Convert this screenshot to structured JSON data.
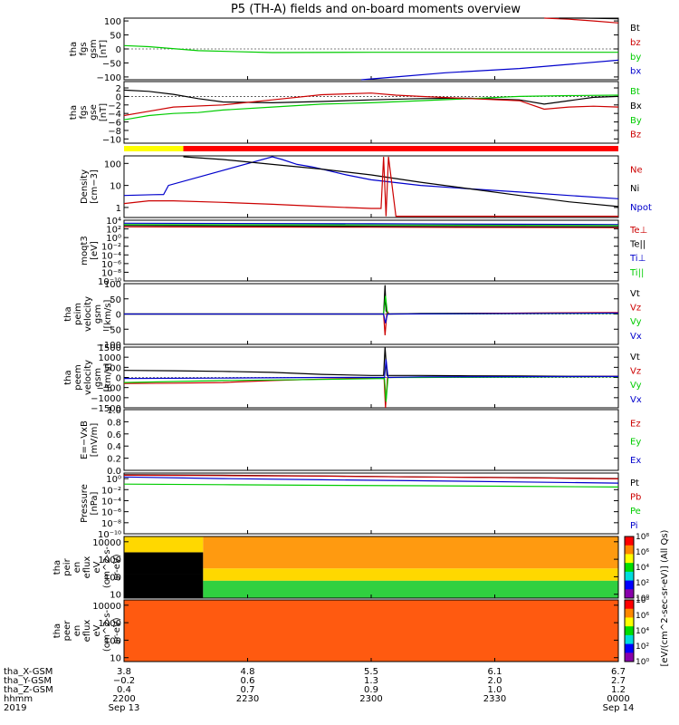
{
  "title": "P5 (TH-A) fields and on-board moments overview",
  "chart_data": [
    {
      "id": "fgs_gsm",
      "type": "line",
      "ylabel": [
        "tha",
        "fgs",
        "gsm",
        "[nT]"
      ],
      "ylim": [
        -110,
        110
      ],
      "yticks": [
        -100,
        -50,
        0,
        50,
        100
      ],
      "ytick_labels": [
        "−100",
        "−50",
        "0",
        "50",
        "100"
      ],
      "legend": [
        {
          "name": "Bt",
          "color": "#000000"
        },
        {
          "name": "bz",
          "color": "#cc0000"
        },
        {
          "name": "by",
          "color": "#00cc00"
        },
        {
          "name": "bx",
          "color": "#0000cc"
        }
      ],
      "series": [
        {
          "color": "#00cc00",
          "x": [
            0,
            0.05,
            0.15,
            0.3,
            0.5,
            0.7,
            0.9,
            1
          ],
          "y": [
            12,
            8,
            -6,
            -13,
            -12,
            -12,
            -12,
            -12
          ]
        },
        {
          "color": "#0000cc",
          "x": [
            0.48,
            0.55,
            0.65,
            0.8,
            0.9,
            1
          ],
          "y": [
            -110,
            -100,
            -85,
            -70,
            -55,
            -40
          ]
        },
        {
          "color": "#cc0000",
          "x": [
            0.85,
            0.9,
            0.95,
            1
          ],
          "y": [
            110,
            106,
            100,
            93
          ]
        },
        {
          "color": "#000000",
          "x": [
            0.88,
            0.93,
            1
          ],
          "y": [
            110,
            110,
            108
          ]
        }
      ]
    },
    {
      "id": "fgs_gse",
      "type": "line",
      "ylabel": [
        "tha",
        "fgs",
        "gse",
        "[nT]"
      ],
      "ylim": [
        -11,
        3.5
      ],
      "yticks": [
        -10,
        -8,
        -6,
        -4,
        -2,
        0,
        2
      ],
      "ytick_labels": [
        "−10",
        "−8",
        "−6",
        "−4",
        "−2",
        "0",
        "2"
      ],
      "legend": [
        {
          "name": "Bt",
          "color": "#00cc00"
        },
        {
          "name": "Bx",
          "color": "#000000"
        },
        {
          "name": "By",
          "color": "#00cc00"
        },
        {
          "name": "Bz",
          "color": "#cc0000"
        }
      ],
      "series": [
        {
          "color": "#000000",
          "x": [
            0,
            0.05,
            0.1,
            0.15,
            0.2,
            0.3,
            0.4,
            0.5,
            0.6,
            0.7,
            0.8,
            0.85,
            0.9,
            0.95,
            1
          ],
          "y": [
            1.5,
            1.2,
            0.5,
            -0.5,
            -1.3,
            -1.5,
            -1.2,
            -0.8,
            -0.5,
            -0.4,
            -0.8,
            -1.8,
            -1.0,
            -0.2,
            0.0
          ]
        },
        {
          "color": "#00cc00",
          "x": [
            0,
            0.05,
            0.1,
            0.15,
            0.2,
            0.3,
            0.4,
            0.5,
            0.6,
            0.7,
            0.8,
            0.9,
            1
          ],
          "y": [
            -5.5,
            -4.5,
            -4.0,
            -3.8,
            -3.2,
            -2.5,
            -1.8,
            -1.5,
            -1.0,
            -0.5,
            0.0,
            0.2,
            0.3
          ]
        },
        {
          "color": "#cc0000",
          "x": [
            0,
            0.05,
            0.1,
            0.2,
            0.3,
            0.4,
            0.5,
            0.55,
            0.6,
            0.7,
            0.8,
            0.85,
            0.9,
            0.95,
            1
          ],
          "y": [
            -4.5,
            -3.5,
            -2.5,
            -2.0,
            -0.8,
            0.4,
            0.8,
            0.3,
            0.0,
            -0.5,
            -1.0,
            -3.0,
            -2.5,
            -2.3,
            -2.5
          ]
        }
      ]
    },
    {
      "id": "density",
      "type": "line",
      "ylabel": [
        "Density",
        "[cm−3]"
      ],
      "yscale": "log",
      "ylim": [
        0.35,
        220
      ],
      "yticks": [
        1,
        10,
        100
      ],
      "ytick_labels": [
        "1",
        "10",
        "100"
      ],
      "legend": [
        {
          "name": "Ne",
          "color": "#cc0000"
        },
        {
          "name": "Ni",
          "color": "#000000"
        },
        {
          "name": "Npot",
          "color": "#0000cc"
        }
      ],
      "series": [
        {
          "color": "#0000cc",
          "x": [
            0,
            0.06,
            0.08,
            0.09,
            0.3,
            0.32,
            0.35,
            0.38,
            0.4,
            0.45,
            0.5,
            0.6,
            0.7,
            0.8,
            0.9,
            1
          ],
          "y": [
            3.5,
            3.8,
            3.9,
            10,
            200,
            150,
            90,
            70,
            55,
            30,
            18,
            10,
            7,
            5,
            3.5,
            2.5
          ]
        },
        {
          "color": "#000000",
          "x": [
            0.12,
            0.2,
            0.3,
            0.4,
            0.5,
            0.6,
            0.7,
            0.8,
            0.9,
            1
          ],
          "y": [
            200,
            150,
            90,
            55,
            30,
            14,
            7,
            3.5,
            1.8,
            1.1
          ]
        },
        {
          "color": "#cc0000",
          "x": [
            0,
            0.05,
            0.1,
            0.2,
            0.3,
            0.4,
            0.5,
            0.52,
            0.525,
            0.53,
            0.535,
            0.55,
            0.6,
            0.7,
            0.8,
            0.9,
            1
          ],
          "y": [
            1.5,
            2.0,
            2.0,
            1.7,
            1.4,
            1.1,
            0.9,
            0.9,
            200,
            0.4,
            200,
            0.4,
            0.4,
            0.4,
            0.4,
            0.4,
            0.4
          ]
        }
      ]
    },
    {
      "id": "temperature",
      "type": "line",
      "ylabel": [
        "moqt3",
        "[eV]"
      ],
      "yscale": "log",
      "ylim": [
        1e-10,
        10000
      ],
      "yticks": [
        1e-10,
        1e-08,
        1e-06,
        0.0001,
        0.01,
        1,
        100,
        10000
      ],
      "ytick_labels": [
        "10⁻¹⁰",
        "10⁻⁸",
        "10⁻⁶",
        "10⁻⁴",
        "10⁻²",
        "10⁰",
        "10²",
        "10⁴"
      ],
      "legend": [
        {
          "name": "Te⊥",
          "color": "#cc0000"
        },
        {
          "name": "Te||",
          "color": "#000000"
        },
        {
          "name": "Ti⊥",
          "color": "#0000cc"
        },
        {
          "name": "Ti||",
          "color": "#00cc00"
        }
      ],
      "series": [
        {
          "color": "#cc0000",
          "x": [
            0,
            0.5,
            1
          ],
          "y": [
            300,
            250,
            200
          ]
        },
        {
          "color": "#000000",
          "x": [
            0,
            0.5,
            1
          ],
          "y": [
            600,
            400,
            300
          ]
        },
        {
          "color": "#0000cc",
          "x": [
            0,
            0.5,
            1
          ],
          "y": [
            2000,
            1500,
            1000
          ]
        },
        {
          "color": "#00cc00",
          "x": [
            0,
            0.5,
            1
          ],
          "y": [
            1000,
            800,
            600
          ]
        }
      ]
    },
    {
      "id": "peim_velocity",
      "type": "line",
      "ylabel": [
        "tha",
        "peim",
        "velocity",
        "gsm",
        "[km/s]"
      ],
      "ylim": [
        -100,
        100
      ],
      "yticks": [
        -100,
        -50,
        0,
        50,
        100
      ],
      "ytick_labels": [
        "−100",
        "−50",
        "0",
        "50",
        "100"
      ],
      "legend": [
        {
          "name": "Vt",
          "color": "#000000"
        },
        {
          "name": "Vz",
          "color": "#cc0000"
        },
        {
          "name": "Vy",
          "color": "#00cc00"
        },
        {
          "name": "Vx",
          "color": "#0000cc"
        }
      ],
      "series": [
        {
          "color": "#000000",
          "x": [
            0,
            0.5,
            0.525,
            0.528,
            0.53,
            0.535,
            0.6,
            1
          ],
          "y": [
            0,
            0,
            0,
            95,
            10,
            0,
            2,
            4
          ]
        },
        {
          "color": "#cc0000",
          "x": [
            0,
            0.525,
            0.528,
            0.532,
            0.536,
            1
          ],
          "y": [
            0,
            0,
            -70,
            10,
            0,
            5
          ]
        },
        {
          "color": "#00cc00",
          "x": [
            0,
            0.525,
            0.529,
            0.533,
            1
          ],
          "y": [
            0,
            0,
            60,
            0,
            2
          ]
        },
        {
          "color": "#0000cc",
          "x": [
            0,
            0.525,
            0.529,
            0.533,
            1
          ],
          "y": [
            0,
            0,
            -30,
            0,
            3
          ]
        }
      ]
    },
    {
      "id": "peem_velocity",
      "type": "line",
      "ylabel": [
        "tha",
        "peem",
        "velocity",
        "gsm",
        "[km/s]"
      ],
      "ylim": [
        -1500,
        1500
      ],
      "yticks": [
        -1500,
        -1000,
        -500,
        0,
        500,
        1000,
        1500
      ],
      "ytick_labels": [
        "−1500",
        "−1000",
        "−500",
        "0",
        "500",
        "1000",
        "1500"
      ],
      "legend": [
        {
          "name": "Vt",
          "color": "#000000"
        },
        {
          "name": "Vz",
          "color": "#cc0000"
        },
        {
          "name": "Vy",
          "color": "#00cc00"
        },
        {
          "name": "Vx",
          "color": "#0000cc"
        }
      ],
      "series": [
        {
          "color": "#000000",
          "x": [
            0,
            0.1,
            0.2,
            0.3,
            0.4,
            0.5,
            0.525,
            0.528,
            0.532,
            0.6,
            0.7,
            0.8,
            0.9,
            1
          ],
          "y": [
            350,
            330,
            300,
            250,
            150,
            100,
            100,
            1500,
            100,
            100,
            80,
            70,
            60,
            60
          ]
        },
        {
          "color": "#cc0000",
          "x": [
            0,
            0.1,
            0.2,
            0.3,
            0.4,
            0.5,
            0.526,
            0.529,
            0.533,
            0.6,
            0.8,
            1
          ],
          "y": [
            -300,
            -280,
            -250,
            -150,
            -80,
            -30,
            0,
            -1500,
            0,
            20,
            30,
            50
          ]
        },
        {
          "color": "#00cc00",
          "x": [
            0,
            0.2,
            0.4,
            0.527,
            0.53,
            0.534,
            0.6,
            0.8,
            1
          ],
          "y": [
            -250,
            -150,
            -100,
            -50,
            -1200,
            0,
            0,
            20,
            40
          ]
        },
        {
          "color": "#0000cc",
          "x": [
            0,
            0.2,
            0.4,
            0.527,
            0.53,
            0.534,
            0.6,
            0.8,
            1
          ],
          "y": [
            -50,
            -30,
            0,
            0,
            900,
            0,
            30,
            40,
            50
          ]
        }
      ]
    },
    {
      "id": "efield",
      "type": "line",
      "ylabel": [
        "E=−VxB",
        "[mV/m]"
      ],
      "ylim": [
        0,
        1
      ],
      "yticks": [
        0,
        0.2,
        0.4,
        0.6,
        0.8,
        1.0
      ],
      "ytick_labels": [
        "0.0",
        "0.2",
        "0.4",
        "0.6",
        "0.8",
        "1.0"
      ],
      "legend": [
        {
          "name": "Ez",
          "color": "#cc0000"
        },
        {
          "name": "Ey",
          "color": "#00cc00"
        },
        {
          "name": "Ex",
          "color": "#0000cc"
        }
      ],
      "series": []
    },
    {
      "id": "pressure",
      "type": "line",
      "ylabel": [
        "Pressure",
        "[nPa]"
      ],
      "yscale": "log",
      "ylim": [
        1e-10,
        10
      ],
      "yticks": [
        1e-10,
        1e-08,
        1e-06,
        0.0001,
        0.01,
        1
      ],
      "ytick_labels": [
        "10⁻¹⁰",
        "10⁻⁸",
        "10⁻⁶",
        "10⁻⁴",
        "10⁻²",
        "10⁰"
      ],
      "legend": [
        {
          "name": "Pt",
          "color": "#000000"
        },
        {
          "name": "Pb",
          "color": "#cc0000"
        },
        {
          "name": "Pe",
          "color": "#00cc00"
        },
        {
          "name": "Pi",
          "color": "#0000cc"
        }
      ],
      "series": [
        {
          "color": "#000000",
          "x": [
            0,
            0.2,
            0.4,
            0.6,
            0.8,
            1
          ],
          "y": [
            5,
            4,
            3,
            2,
            1.5,
            1
          ]
        },
        {
          "color": "#cc0000",
          "x": [
            0,
            0.2,
            0.4,
            0.6,
            0.8,
            1
          ],
          "y": [
            4,
            3.5,
            2.8,
            2,
            1.4,
            0.9
          ]
        },
        {
          "color": "#00cc00",
          "x": [
            0,
            0.2,
            0.4,
            0.6,
            0.8,
            1
          ],
          "y": [
            0.1,
            0.08,
            0.06,
            0.05,
            0.04,
            0.03
          ]
        },
        {
          "color": "#0000cc",
          "x": [
            0,
            0.2,
            0.4,
            0.6,
            0.8,
            1
          ],
          "y": [
            2,
            1,
            0.6,
            0.4,
            0.25,
            0.15
          ]
        }
      ]
    },
    {
      "id": "peir_spectrogram",
      "type": "heatmap",
      "ylabel": [
        "tha",
        "peir",
        "en",
        "eflux",
        "eV",
        "(cm^2-s-",
        "sr-eV)"
      ],
      "yscale": "log",
      "ylim": [
        6,
        20000
      ],
      "yticks": [
        10,
        100,
        1000,
        10000
      ],
      "ytick_labels": [
        "10",
        "100",
        "1000",
        "10000"
      ],
      "colorbar_label": "[eV/(cm^2-sec-sr-eV)] (All Qs)",
      "colorbar_ticks": [
        "10⁰",
        "10²",
        "10⁴",
        "10⁶",
        "10⁸"
      ],
      "description_bands": [
        {
          "x": [
            0,
            0.16
          ],
          "ylow": 6,
          "yhigh": 150,
          "level": "black"
        },
        {
          "x": [
            0,
            0.16
          ],
          "ylow": 150,
          "yhigh": 2500,
          "level": "black"
        },
        {
          "x": [
            0,
            0.16
          ],
          "ylow": 2500,
          "yhigh": 20000,
          "level": "yellow"
        },
        {
          "x": [
            0.16,
            1
          ],
          "ylow": 6,
          "yhigh": 60,
          "level": "green"
        },
        {
          "x": [
            0.16,
            1
          ],
          "ylow": 60,
          "yhigh": 300,
          "level": "yellow"
        },
        {
          "x": [
            0.16,
            1
          ],
          "ylow": 300,
          "yhigh": 20000,
          "level": "orange"
        }
      ]
    },
    {
      "id": "peer_spectrogram",
      "type": "heatmap",
      "ylabel": [
        "tha",
        "peer",
        "en",
        "eflux",
        "eV",
        "(cm^2-s-",
        "sr-eV)"
      ],
      "yscale": "log",
      "ylim": [
        6,
        20000
      ],
      "yticks": [
        10,
        100,
        1000,
        10000
      ],
      "ytick_labels": [
        "10",
        "100",
        "1000",
        "10000"
      ],
      "colorbar_label": "[eV/(cm^2-sec-sr-eV)] (All Qs)",
      "colorbar_ticks": [
        "10⁰",
        "10²",
        "10⁴",
        "10⁶",
        "10⁸"
      ],
      "description_bands": [
        {
          "x": [
            0,
            1
          ],
          "ylow": 6,
          "yhigh": 20000,
          "level": "red-orange"
        }
      ]
    }
  ],
  "mode_bar": [
    {
      "x": [
        0,
        0.12
      ],
      "color": "#ffff00"
    },
    {
      "x": [
        0.12,
        1
      ],
      "color": "#ff0000"
    }
  ],
  "xaxis": {
    "ticks": [
      0,
      0.25,
      0.5,
      0.75,
      1.0
    ],
    "row_labels": [
      "tha_X-GSM",
      "tha_Y-GSM",
      "tha_Z-GSM",
      "hhmm",
      "2019"
    ],
    "rows": [
      [
        "3.8",
        "4.8",
        "5.5",
        "6.1",
        "6.7"
      ],
      [
        "−0.2",
        "0.6",
        "1.3",
        "2.0",
        "2.7"
      ],
      [
        "0.4",
        "0.7",
        "0.9",
        "1.0",
        "1.2"
      ],
      [
        "2200",
        "2230",
        "2300",
        "2330",
        "0000"
      ],
      [
        "Sep 13",
        "",
        "",
        "",
        "Sep 14"
      ]
    ]
  }
}
